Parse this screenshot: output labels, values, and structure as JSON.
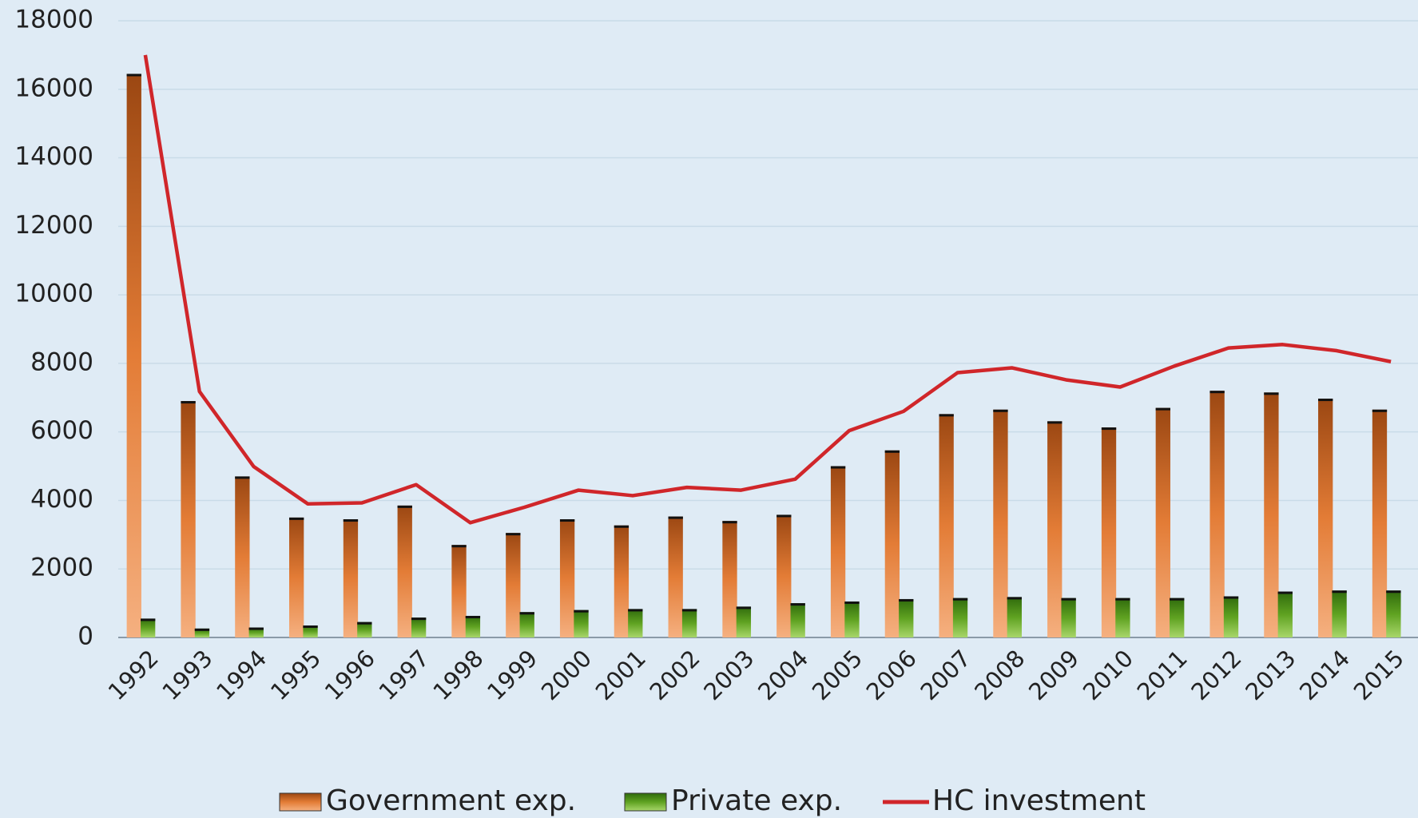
{
  "chart_data": {
    "type": "bar",
    "categories": [
      "1992",
      "1993",
      "1994",
      "1995",
      "1996",
      "1997",
      "1998",
      "1999",
      "2000",
      "2001",
      "2002",
      "2003",
      "2004",
      "2005",
      "2006",
      "2007",
      "2008",
      "2009",
      "2010",
      "2011",
      "2012",
      "2013",
      "2014",
      "2015"
    ],
    "series": [
      {
        "name": "Government exp.",
        "type": "bar",
        "color": "#e07a35",
        "values": [
          16450,
          6900,
          4700,
          3500,
          3450,
          3850,
          2700,
          3050,
          3450,
          3270,
          3530,
          3400,
          3580,
          5000,
          5460,
          6520,
          6650,
          6310,
          6130,
          6700,
          7200,
          7150,
          6970,
          6650
        ]
      },
      {
        "name": "Private exp.",
        "type": "bar",
        "color": "#5a9e1e",
        "values": [
          550,
          260,
          290,
          350,
          450,
          580,
          630,
          740,
          800,
          830,
          830,
          900,
          1000,
          1050,
          1120,
          1150,
          1180,
          1150,
          1150,
          1150,
          1200,
          1340,
          1370,
          1370
        ]
      },
      {
        "name": "HC investment",
        "type": "line",
        "color": "#d0262a",
        "values": [
          17000,
          7180,
          4990,
          3900,
          3930,
          4460,
          3350,
          3800,
          4300,
          4140,
          4380,
          4300,
          4620,
          6040,
          6600,
          7730,
          7870,
          7520,
          7310,
          7920,
          8450,
          8550,
          8370,
          8050
        ]
      }
    ],
    "ylim": [
      0,
      18000
    ],
    "yticks": [
      0,
      2000,
      4000,
      6000,
      8000,
      10000,
      12000,
      14000,
      16000,
      18000
    ],
    "grid": true,
    "legend": "bottom"
  }
}
